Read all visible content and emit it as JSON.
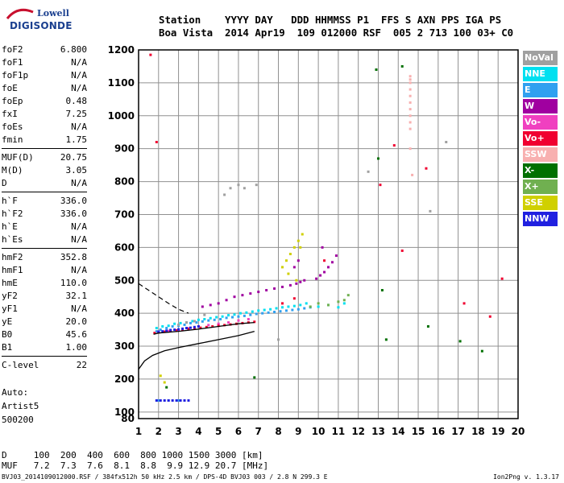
{
  "logo": {
    "line1": "Lowell",
    "line2": "DIGISONDE"
  },
  "header": {
    "labels": "Station    YYYY DAY   DDD HHMMSS P1  FFS S AXN PPS IGA PS",
    "values": "Boa Vista  2014 Apr19  109 012000 RSF  005 2 713 100 03+ C0"
  },
  "params": {
    "group1": [
      {
        "name": "foF2",
        "value": "6.800"
      },
      {
        "name": "foF1",
        "value": "N/A"
      },
      {
        "name": "foF1p",
        "value": "N/A"
      },
      {
        "name": "foE",
        "value": "N/A"
      },
      {
        "name": "foEp",
        "value": "0.48"
      },
      {
        "name": "fxI",
        "value": "7.25"
      },
      {
        "name": "foEs",
        "value": "N/A"
      },
      {
        "name": "fmin",
        "value": "1.75"
      }
    ],
    "group2": [
      {
        "name": "MUF(D)",
        "value": "20.75"
      },
      {
        "name": "M(D)",
        "value": "3.05"
      },
      {
        "name": "D",
        "value": "N/A"
      }
    ],
    "group3": [
      {
        "name": "h`F",
        "value": "336.0"
      },
      {
        "name": "h`F2",
        "value": "336.0"
      },
      {
        "name": "h`E",
        "value": "N/A"
      },
      {
        "name": "h`Es",
        "value": "N/A"
      }
    ],
    "group4": [
      {
        "name": "hmF2",
        "value": "352.8"
      },
      {
        "name": "hmF1",
        "value": "N/A"
      },
      {
        "name": "hmE",
        "value": "110.0"
      },
      {
        "name": "yF2",
        "value": "32.1"
      },
      {
        "name": "yF1",
        "value": "N/A"
      },
      {
        "name": "yE",
        "value": "20.0"
      },
      {
        "name": "B0",
        "value": "45.6"
      },
      {
        "name": "B1",
        "value": "1.00"
      }
    ],
    "group5": [
      {
        "name": "C-level",
        "value": "22"
      }
    ]
  },
  "auto": {
    "line1": "Auto:",
    "line2": "Artist5",
    "line3": "500200"
  },
  "legend": [
    {
      "label": "NoVal",
      "color": "#a0a0a0"
    },
    {
      "label": "NNE",
      "color": "#00e0f0"
    },
    {
      "label": "E",
      "color": "#30a0f0"
    },
    {
      "label": "W",
      "color": "#a000a0"
    },
    {
      "label": "Vo-",
      "color": "#f040c0"
    },
    {
      "label": "Vo+",
      "color": "#f00030"
    },
    {
      "label": "SSW",
      "color": "#f8b0b0"
    },
    {
      "label": "X-",
      "color": "#007000"
    },
    {
      "label": "X+",
      "color": "#70b050"
    },
    {
      "label": "SSE",
      "color": "#d0d000"
    },
    {
      "label": "NNW",
      "color": "#2020e0"
    }
  ],
  "dmuf": {
    "line1": "D     100  200  400  600  800 1000 1500 3000 [km]",
    "line2": "MUF   7.2  7.3  7.6  8.1  8.8  9.9 12.9 20.7 [MHz]"
  },
  "footer": {
    "left": "BVJ03_2014109012000.RSF / 384fx512h 50 kHz 2.5 km / DPS-4D BVJ03 003 / 2.8 N 299.3 E",
    "right": "Ion2Png v. 1.3.17"
  },
  "chart_data": {
    "type": "scatter",
    "xlim": [
      1,
      20
    ],
    "ylim": [
      80,
      1200
    ],
    "x_ticks": [
      1,
      2,
      3,
      4,
      5,
      6,
      7,
      8,
      9,
      10,
      11,
      12,
      13,
      14,
      15,
      16,
      17,
      18,
      19,
      20
    ],
    "y_ticks": [
      80,
      100,
      200,
      300,
      400,
      500,
      600,
      700,
      800,
      900,
      1000,
      1100,
      1200
    ],
    "grid": true,
    "legend_position": "right",
    "trace_curve": [
      [
        1.75,
        336
      ],
      [
        2,
        340
      ],
      [
        3,
        345
      ],
      [
        4,
        352
      ],
      [
        5,
        360
      ],
      [
        6,
        368
      ],
      [
        6.8,
        372
      ]
    ],
    "profile_curve": [
      [
        1.0,
        230
      ],
      [
        1.3,
        255
      ],
      [
        1.7,
        272
      ],
      [
        2.3,
        286
      ],
      [
        3,
        296
      ],
      [
        4,
        308
      ],
      [
        5,
        320
      ],
      [
        6,
        332
      ],
      [
        6.8,
        345
      ]
    ],
    "profile_dashed": [
      [
        1.0,
        490
      ],
      [
        1.5,
        470
      ],
      [
        2.0,
        450
      ],
      [
        2.5,
        430
      ],
      [
        3,
        412
      ],
      [
        3.5,
        400
      ]
    ],
    "series": [
      {
        "name": "NNE",
        "color": "#00e0f0",
        "x": [
          1.9,
          2.2,
          2.5,
          2.8,
          3.1,
          3.4,
          3.7,
          4.0,
          4.3,
          4.6,
          4.9,
          5.2,
          5.5,
          5.8,
          6.1,
          6.4,
          6.7,
          7.0,
          7.3,
          7.6,
          7.9,
          8.2,
          8.5,
          8.8,
          9.1,
          9.4,
          10.0,
          10.5,
          11.0,
          11.3
        ],
        "y": [
          355,
          360,
          362,
          368,
          370,
          372,
          376,
          380,
          382,
          385,
          388,
          390,
          394,
          396,
          400,
          402,
          405,
          408,
          410,
          412,
          415,
          418,
          420,
          422,
          425,
          430,
          420,
          425,
          418,
          430
        ]
      },
      {
        "name": "E",
        "color": "#30a0f0",
        "x": [
          1.9,
          2.1,
          2.4,
          2.7,
          3.0,
          3.3,
          3.6,
          3.9,
          4.2,
          4.5,
          4.8,
          5.1,
          5.4,
          5.7,
          6.0,
          6.3,
          6.6,
          6.9,
          7.2,
          7.5,
          7.8,
          8.1,
          8.4,
          8.7,
          9.0,
          9.3,
          9.6,
          2.0,
          2.5,
          3.0
        ],
        "y": [
          345,
          350,
          355,
          360,
          362,
          365,
          370,
          372,
          375,
          378,
          380,
          382,
          386,
          388,
          390,
          392,
          395,
          398,
          400,
          402,
          404,
          406,
          408,
          410,
          412,
          415,
          418,
          135,
          135,
          135
        ]
      },
      {
        "name": "W",
        "color": "#a000a0",
        "x": [
          4.2,
          4.6,
          5.0,
          5.4,
          5.8,
          6.2,
          6.6,
          7.0,
          7.4,
          7.8,
          8.2,
          8.6,
          8.9,
          9.1,
          9.3,
          9.9,
          10.1,
          10.3,
          10.5,
          10.7,
          10.9,
          8.8,
          9.0,
          10.2
        ],
        "y": [
          420,
          425,
          430,
          440,
          450,
          455,
          460,
          465,
          470,
          475,
          480,
          485,
          490,
          495,
          500,
          505,
          515,
          525,
          540,
          555,
          575,
          540,
          560,
          600
        ]
      },
      {
        "name": "Vo-",
        "color": "#f040c0",
        "x": [
          2.0,
          2.5,
          3.0,
          3.5,
          4.0,
          4.5,
          5.0,
          5.5,
          6.0,
          6.5
        ],
        "y": [
          342,
          346,
          350,
          354,
          360,
          364,
          368,
          372,
          378,
          382
        ]
      },
      {
        "name": "Vo+",
        "color": "#f00030",
        "x": [
          1.8,
          2.0,
          2.3,
          2.6,
          2.9,
          3.2,
          3.5,
          3.8,
          4.1,
          4.4,
          4.7,
          5.0,
          5.3,
          5.6,
          5.9,
          6.2,
          6.5,
          6.8,
          8.2,
          8.8,
          10.3,
          13.1,
          13.8,
          15.4,
          17.3,
          18.6,
          19.2,
          14.2,
          1.6,
          1.9
        ],
        "y": [
          340,
          342,
          344,
          346,
          348,
          350,
          352,
          354,
          356,
          358,
          360,
          362,
          364,
          366,
          368,
          370,
          372,
          374,
          430,
          445,
          560,
          790,
          910,
          840,
          430,
          390,
          505,
          590,
          1185,
          920
        ]
      },
      {
        "name": "SSW",
        "color": "#f8b0b0",
        "x": [
          14.6,
          14.6,
          14.6,
          14.6,
          14.6,
          14.6,
          14.6,
          14.6,
          14.6,
          14.6,
          14.6,
          14.7
        ],
        "y": [
          960,
          980,
          1000,
          1020,
          1040,
          1060,
          1080,
          1100,
          1110,
          1120,
          900,
          820
        ]
      },
      {
        "name": "X-",
        "color": "#007000",
        "x": [
          12.9,
          13.0,
          13.2,
          13.4,
          14.2,
          15.5,
          17.1,
          18.2,
          2.4,
          6.8
        ],
        "y": [
          1140,
          870,
          470,
          320,
          1150,
          360,
          315,
          285,
          175,
          205
        ]
      },
      {
        "name": "X+",
        "color": "#70b050",
        "x": [
          9.6,
          10.0,
          10.5,
          11.0,
          11.3,
          11.5
        ],
        "y": [
          420,
          430,
          425,
          435,
          440,
          455
        ]
      },
      {
        "name": "SSE",
        "color": "#d0d000",
        "x": [
          8.2,
          8.4,
          8.6,
          8.8,
          9.0,
          9.2,
          8.5,
          8.9,
          9.1,
          2.1,
          2.3
        ],
        "y": [
          540,
          560,
          580,
          600,
          620,
          640,
          520,
          500,
          600,
          210,
          190
        ]
      },
      {
        "name": "NNW",
        "color": "#2020e0",
        "x": [
          2.0,
          2.2,
          2.4,
          2.6,
          2.8,
          3.0,
          3.2,
          3.4,
          3.6,
          3.8,
          4.0,
          1.9,
          2.1,
          2.3,
          2.5,
          2.7,
          2.9,
          3.1,
          3.3,
          3.5
        ],
        "y": [
          344,
          345,
          347,
          349,
          350,
          351,
          353,
          355,
          356,
          358,
          360,
          135,
          135,
          135,
          135,
          135,
          135,
          135,
          135,
          135
        ]
      },
      {
        "name": "NoVal",
        "color": "#a0a0a0",
        "x": [
          3.0,
          3.4,
          3.8,
          4.3,
          5.3,
          5.6,
          6.0,
          6.3,
          6.9,
          8.0,
          12.5,
          15.6,
          16.4
        ],
        "y": [
          365,
          372,
          376,
          395,
          760,
          780,
          790,
          780,
          790,
          320,
          830,
          710,
          920
        ]
      }
    ]
  }
}
